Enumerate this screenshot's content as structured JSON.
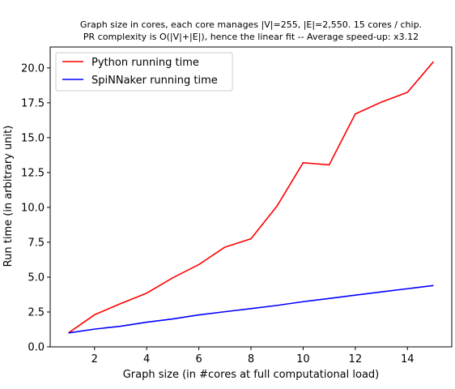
{
  "chart_data": {
    "type": "line",
    "title_lines": [
      "Graph size in cores, each core manages |V|=255, |E|=2,550. 15 cores / chip.",
      "PR complexity is O(|V|+|E|), hence the linear fit  --  Average speed-up: x3.12"
    ],
    "xlabel": "Graph size (in #cores at full computational load)",
    "ylabel": "Run time (in arbitrary unit)",
    "xlim": [
      0.3,
      15.7
    ],
    "ylim": [
      0,
      21.5
    ],
    "xticks": [
      2,
      4,
      6,
      8,
      10,
      12,
      14
    ],
    "xtick_labels": [
      "2",
      "4",
      "6",
      "8",
      "10",
      "12",
      "14"
    ],
    "yticks": [
      0,
      2.5,
      5,
      7.5,
      10,
      12.5,
      15,
      17.5,
      20
    ],
    "ytick_labels": [
      "0.0",
      "2.5",
      "5.0",
      "7.5",
      "10.0",
      "12.5",
      "15.0",
      "17.5",
      "20.0"
    ],
    "grid": false,
    "legend_position": "upper-left",
    "x": [
      1,
      2,
      3,
      4,
      5,
      6,
      7,
      8,
      9,
      10,
      11,
      12,
      13,
      14,
      15
    ],
    "series": [
      {
        "name": "Python running time",
        "color": "#ff0000",
        "values": [
          1.0,
          2.3,
          3.1,
          3.85,
          4.95,
          5.9,
          7.15,
          7.75,
          10.1,
          13.2,
          13.05,
          16.7,
          17.55,
          18.25,
          20.45
        ]
      },
      {
        "name": "SpiNNaker running time",
        "color": "#0000ff",
        "values": [
          1.0,
          1.27,
          1.48,
          1.77,
          2.0,
          2.29,
          2.52,
          2.74,
          2.97,
          3.24,
          3.47,
          3.71,
          3.94,
          4.17,
          4.4
        ]
      }
    ]
  }
}
